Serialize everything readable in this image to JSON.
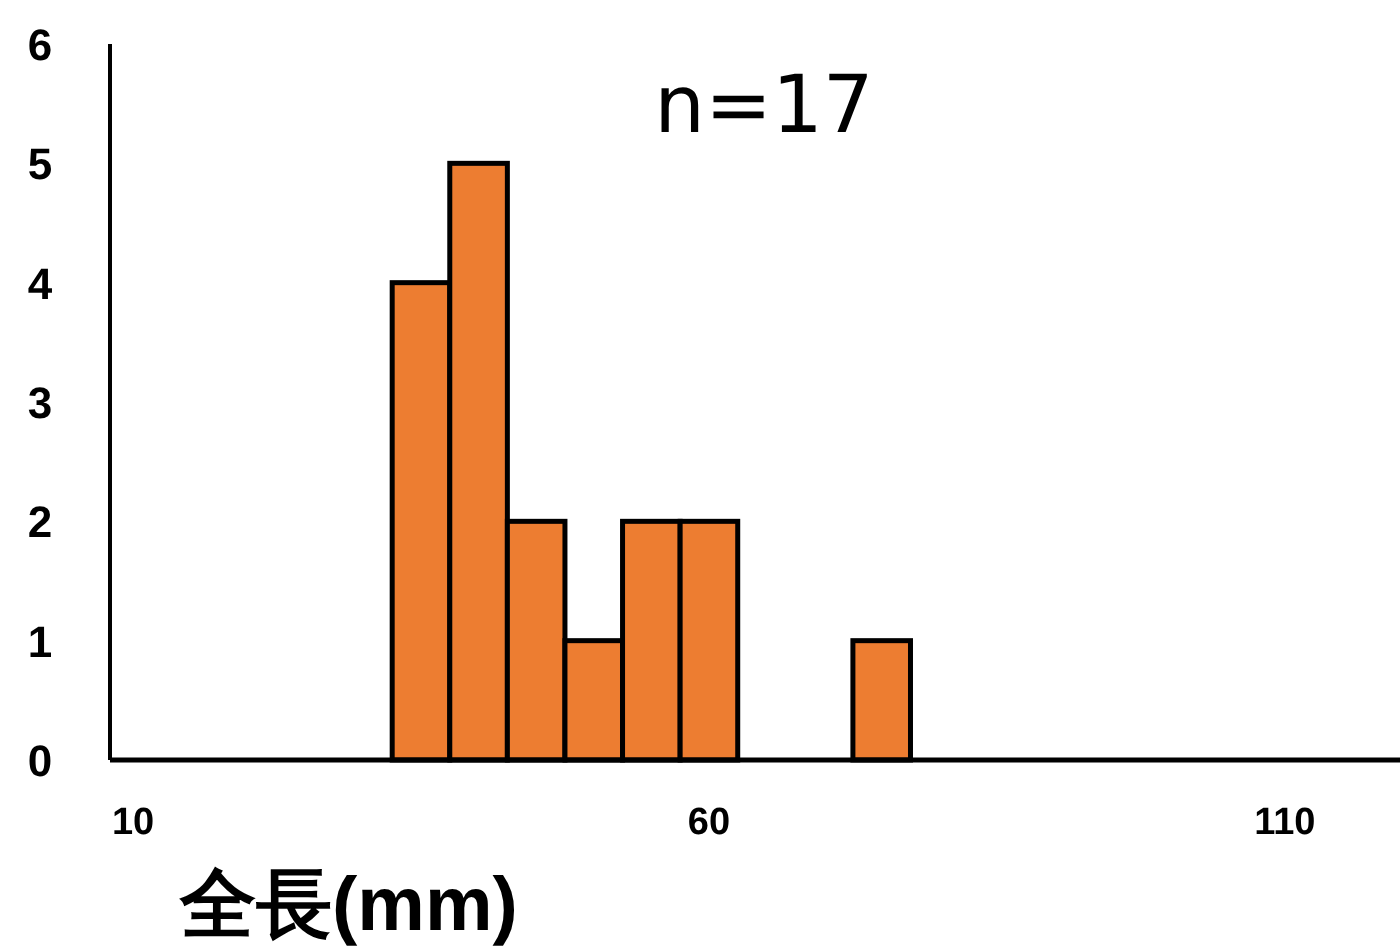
{
  "chart_data": {
    "type": "histogram",
    "xlabel": "全長(mm)",
    "annotations": [
      "n=17"
    ],
    "bins": [
      32.5,
      37.5,
      42.5,
      47.5,
      52.5,
      57.5,
      62.5,
      67.5,
      72.5,
      77.5
    ],
    "values": [
      4,
      5,
      2,
      1,
      2,
      2,
      0,
      0,
      1
    ],
    "color": "#ed7d31",
    "xlim": [
      8,
      120
    ],
    "ylim": [
      0,
      6
    ],
    "xticks": [
      10,
      60,
      110
    ],
    "yticks": [
      0,
      1,
      2,
      3,
      4,
      5,
      6
    ],
    "grid": false
  }
}
